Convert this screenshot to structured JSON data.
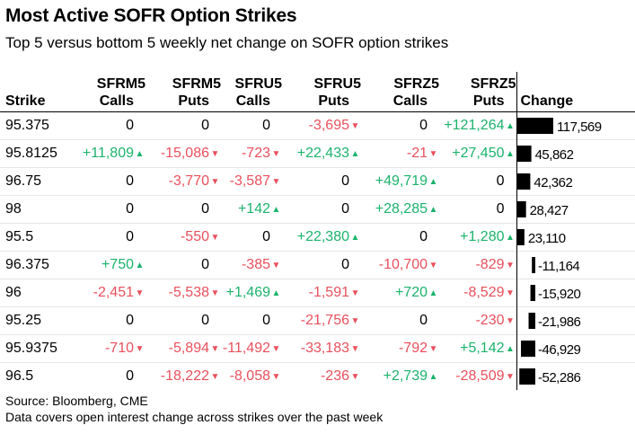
{
  "title": "Most Active SOFR Option Strikes",
  "subtitle": "Top 5 versus bottom 5 weekly net change on SOFR option strikes",
  "headers": {
    "strike": "Strike",
    "c1": [
      "SFRM5",
      "Calls"
    ],
    "c2": [
      "SFRM5",
      "Puts"
    ],
    "c3": [
      "SFRU5",
      "Calls"
    ],
    "c4": [
      "SFRU5",
      "Puts"
    ],
    "c5": [
      "SFRZ5",
      "Calls"
    ],
    "c6": [
      "SFRZ5",
      "Puts"
    ],
    "change": "Change"
  },
  "colors": {
    "positive": "#1bb36b",
    "negative": "#e8505b",
    "bar": "#000000"
  },
  "rows": [
    {
      "strike": "95.375",
      "cells": [
        "0",
        "0",
        "0",
        "-3,695",
        "0",
        "+121,264"
      ],
      "change": "117,569"
    },
    {
      "strike": "95.8125",
      "cells": [
        "+11,809",
        "-15,086",
        "-723",
        "+22,433",
        "-21",
        "+27,450"
      ],
      "change": "45,862"
    },
    {
      "strike": "96.75",
      "cells": [
        "0",
        "-3,770",
        "-3,587",
        "0",
        "+49,719",
        "0"
      ],
      "change": "42,362"
    },
    {
      "strike": "98",
      "cells": [
        "0",
        "0",
        "+142",
        "0",
        "+28,285",
        "0"
      ],
      "change": "28,427"
    },
    {
      "strike": "95.5",
      "cells": [
        "0",
        "-550",
        "0",
        "+22,380",
        "0",
        "+1,280"
      ],
      "change": "23,110"
    },
    {
      "strike": "96.375",
      "cells": [
        "+750",
        "0",
        "-385",
        "0",
        "-10,700",
        "-829"
      ],
      "change": "-11,164"
    },
    {
      "strike": "96",
      "cells": [
        "-2,451",
        "-5,538",
        "+1,469",
        "-1,591",
        "+720",
        "-8,529"
      ],
      "change": "-15,920"
    },
    {
      "strike": "95.25",
      "cells": [
        "0",
        "0",
        "0",
        "-21,756",
        "0",
        "-230"
      ],
      "change": "-21,986"
    },
    {
      "strike": "95.9375",
      "cells": [
        "-710",
        "-5,894",
        "-11,492",
        "-33,183",
        "-792",
        "+5,142"
      ],
      "change": "-46,929"
    },
    {
      "strike": "96.5",
      "cells": [
        "0",
        "-18,222",
        "-8,058",
        "-236",
        "+2,739",
        "-28,509"
      ],
      "change": "-52,286"
    }
  ],
  "chart_data": {
    "type": "table",
    "title": "Most Active SOFR Option Strikes",
    "columns": [
      "Strike",
      "SFRM5 Calls",
      "SFRM5 Puts",
      "SFRU5 Calls",
      "SFRU5 Puts",
      "SFRZ5 Calls",
      "SFRZ5 Puts",
      "Change"
    ],
    "categories": [
      "95.375",
      "95.8125",
      "96.75",
      "98",
      "95.5",
      "96.375",
      "96",
      "95.25",
      "95.9375",
      "96.5"
    ],
    "series": [
      {
        "name": "SFRM5 Calls",
        "values": [
          0,
          11809,
          0,
          0,
          0,
          750,
          -2451,
          0,
          -710,
          0
        ]
      },
      {
        "name": "SFRM5 Puts",
        "values": [
          0,
          -15086,
          -3770,
          0,
          -550,
          0,
          -5538,
          0,
          -5894,
          -18222
        ]
      },
      {
        "name": "SFRU5 Calls",
        "values": [
          0,
          -723,
          -3587,
          142,
          0,
          -385,
          1469,
          0,
          -11492,
          -8058
        ]
      },
      {
        "name": "SFRU5 Puts",
        "values": [
          -3695,
          22433,
          0,
          0,
          22380,
          0,
          -1591,
          -21756,
          -33183,
          -236
        ]
      },
      {
        "name": "SFRZ5 Calls",
        "values": [
          0,
          -21,
          49719,
          28285,
          0,
          -10700,
          720,
          0,
          -792,
          2739
        ]
      },
      {
        "name": "SFRZ5 Puts",
        "values": [
          121264,
          27450,
          0,
          0,
          1280,
          -829,
          -8529,
          -230,
          5142,
          -28509
        ]
      },
      {
        "name": "Change",
        "values": [
          117569,
          45862,
          42362,
          28427,
          23110,
          -11164,
          -15920,
          -21986,
          -46929,
          -52286
        ]
      }
    ],
    "change_axis_range": [
      -52286,
      117569
    ]
  },
  "footer": {
    "source": "Source: Bloomberg, CME",
    "note": "Data covers open interest change across strikes over the past week"
  }
}
